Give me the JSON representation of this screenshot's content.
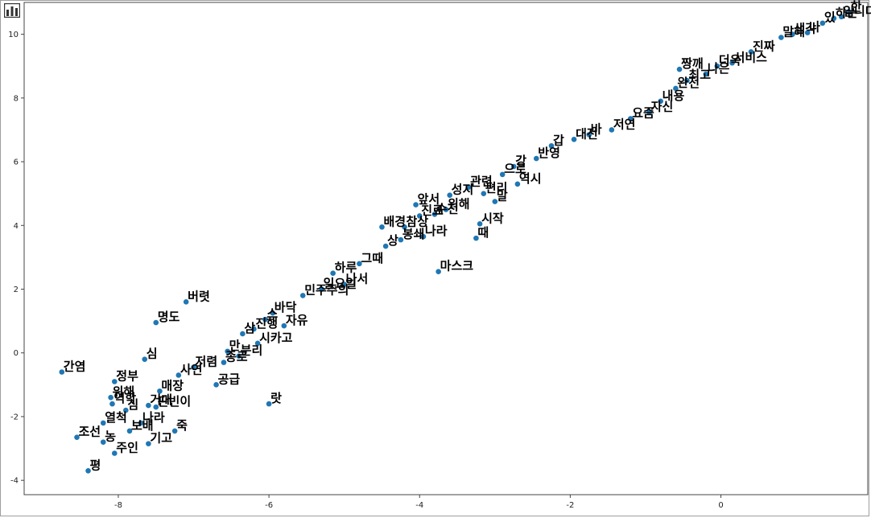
{
  "toolbar": {
    "icon": "bar-chart-icon"
  },
  "colors": {
    "point": "#1f77b4",
    "axis": "#444444",
    "label": "#000000"
  },
  "chart_data": {
    "type": "scatter",
    "title": "",
    "xlabel": "",
    "ylabel": "",
    "xlim": [
      -9.25,
      1.95
    ],
    "ylim": [
      -4.45,
      11.0
    ],
    "xticks": [
      -8,
      -6,
      -4,
      -2,
      0
    ],
    "yticks": [
      -4,
      -2,
      0,
      2,
      4,
      6,
      8,
      10
    ],
    "xtick_labels": [
      "-8",
      "-6",
      "-4",
      "-2",
      "0"
    ],
    "ytick_labels": [
      "-4",
      "-2",
      "0",
      "2",
      "4",
      "6",
      "8",
      "10"
    ],
    "points": [
      {
        "label": "간염",
        "x": -8.75,
        "y": -0.6
      },
      {
        "label": "정부",
        "x": -8.05,
        "y": -0.9
      },
      {
        "label": "위해",
        "x": -8.1,
        "y": -1.4
      },
      {
        "label": "역학",
        "x": -8.08,
        "y": -1.6
      },
      {
        "label": "심",
        "x": -7.9,
        "y": -1.8
      },
      {
        "label": "열척",
        "x": -8.2,
        "y": -2.2
      },
      {
        "label": "조선",
        "x": -8.55,
        "y": -2.65
      },
      {
        "label": "농",
        "x": -8.2,
        "y": -2.8
      },
      {
        "label": "주인",
        "x": -8.05,
        "y": -3.15
      },
      {
        "label": "평",
        "x": -8.4,
        "y": -3.7
      },
      {
        "label": "보배",
        "x": -7.85,
        "y": -2.45
      },
      {
        "label": "기고",
        "x": -7.6,
        "y": -2.85
      },
      {
        "label": "나라",
        "x": -7.7,
        "y": -2.2
      },
      {
        "label": "거대",
        "x": -7.6,
        "y": -1.65
      },
      {
        "label": "매장",
        "x": -7.45,
        "y": -1.2
      },
      {
        "label": "판빈이",
        "x": -7.5,
        "y": -1.7
      },
      {
        "label": "죽",
        "x": -7.25,
        "y": -2.45
      },
      {
        "label": "심",
        "x": -7.65,
        "y": -0.2
      },
      {
        "label": "명도",
        "x": -7.5,
        "y": 0.95
      },
      {
        "label": "버렷",
        "x": -7.1,
        "y": 1.6
      },
      {
        "label": "저렴",
        "x": -7.0,
        "y": -0.45
      },
      {
        "label": "사연",
        "x": -7.2,
        "y": -0.7
      },
      {
        "label": "공급",
        "x": -6.7,
        "y": -1.0
      },
      {
        "label": "만",
        "x": -6.55,
        "y": 0.05
      },
      {
        "label": "종로",
        "x": -6.6,
        "y": -0.3
      },
      {
        "label": "분리",
        "x": -6.4,
        "y": -0.1
      },
      {
        "label": "시카고",
        "x": -6.15,
        "y": 0.3
      },
      {
        "label": "삼",
        "x": -6.35,
        "y": 0.6
      },
      {
        "label": "진행",
        "x": -6.2,
        "y": 0.75
      },
      {
        "label": "스",
        "x": -6.05,
        "y": 1.05
      },
      {
        "label": "바닥",
        "x": -5.95,
        "y": 1.25
      },
      {
        "label": "자유",
        "x": -5.8,
        "y": 0.85
      },
      {
        "label": "민주주의",
        "x": -5.55,
        "y": 1.8
      },
      {
        "label": "일요일",
        "x": -5.3,
        "y": 2.0
      },
      {
        "label": "하루",
        "x": -5.15,
        "y": 2.5
      },
      {
        "label": "나서",
        "x": -5.0,
        "y": 2.15
      },
      {
        "label": "그때",
        "x": -4.8,
        "y": 2.8
      },
      {
        "label": "상",
        "x": -4.45,
        "y": 3.35
      },
      {
        "label": "배경",
        "x": -4.5,
        "y": 3.95
      },
      {
        "label": "참상",
        "x": -4.2,
        "y": 3.95
      },
      {
        "label": "봉쇄",
        "x": -4.25,
        "y": 3.55
      },
      {
        "label": "나라",
        "x": -3.95,
        "y": 3.65
      },
      {
        "label": "진료",
        "x": -4.0,
        "y": 4.3
      },
      {
        "label": "앞서",
        "x": -4.05,
        "y": 4.65
      },
      {
        "label": "수천",
        "x": -3.8,
        "y": 4.35
      },
      {
        "label": "위해",
        "x": -3.65,
        "y": 4.5
      },
      {
        "label": "성지",
        "x": -3.6,
        "y": 4.95
      },
      {
        "label": "관련",
        "x": -3.35,
        "y": 5.2
      },
      {
        "label": "때",
        "x": -3.25,
        "y": 3.6
      },
      {
        "label": "시작",
        "x": -3.2,
        "y": 4.05
      },
      {
        "label": "말",
        "x": -3.0,
        "y": 4.75
      },
      {
        "label": "편리",
        "x": -3.15,
        "y": 5.0
      },
      {
        "label": "으로",
        "x": -2.9,
        "y": 5.6
      },
      {
        "label": "강",
        "x": -2.75,
        "y": 5.85
      },
      {
        "label": "역시",
        "x": -2.7,
        "y": 5.3
      },
      {
        "label": "마스크",
        "x": -3.75,
        "y": 2.55
      },
      {
        "label": "반영",
        "x": -2.45,
        "y": 6.1
      },
      {
        "label": "갑",
        "x": -2.25,
        "y": 6.5
      },
      {
        "label": "대전",
        "x": -1.95,
        "y": 6.7
      },
      {
        "label": "바",
        "x": -1.75,
        "y": 6.85
      },
      {
        "label": "저연",
        "x": -1.45,
        "y": 7.0
      },
      {
        "label": "요즘",
        "x": -1.2,
        "y": 7.35
      },
      {
        "label": "자신",
        "x": -0.95,
        "y": 7.55
      },
      {
        "label": "내용",
        "x": -0.8,
        "y": 7.9
      },
      {
        "label": "완전",
        "x": -0.6,
        "y": 8.3
      },
      {
        "label": "최고",
        "x": -0.45,
        "y": 8.55
      },
      {
        "label": "짱깨",
        "x": -0.55,
        "y": 8.9
      },
      {
        "label": "나은",
        "x": -0.2,
        "y": 8.75
      },
      {
        "label": "더욱",
        "x": -0.05,
        "y": 9.0
      },
      {
        "label": "서비스",
        "x": 0.15,
        "y": 9.1
      },
      {
        "label": "진짜",
        "x": 0.4,
        "y": 9.45
      },
      {
        "label": "말해",
        "x": 0.8,
        "y": 9.9
      },
      {
        "label": "생각",
        "x": 0.95,
        "y": 10.0
      },
      {
        "label": "나",
        "x": 1.15,
        "y": 10.05
      },
      {
        "label": "있",
        "x": 1.35,
        "y": 10.35
      },
      {
        "label": "하는",
        "x": 1.5,
        "y": 10.5
      },
      {
        "label": "입니다",
        "x": 1.6,
        "y": 10.55
      },
      {
        "label": "한",
        "x": 1.7,
        "y": 10.7
      },
      {
        "label": "랏",
        "x": -6.0,
        "y": -1.6
      }
    ]
  }
}
